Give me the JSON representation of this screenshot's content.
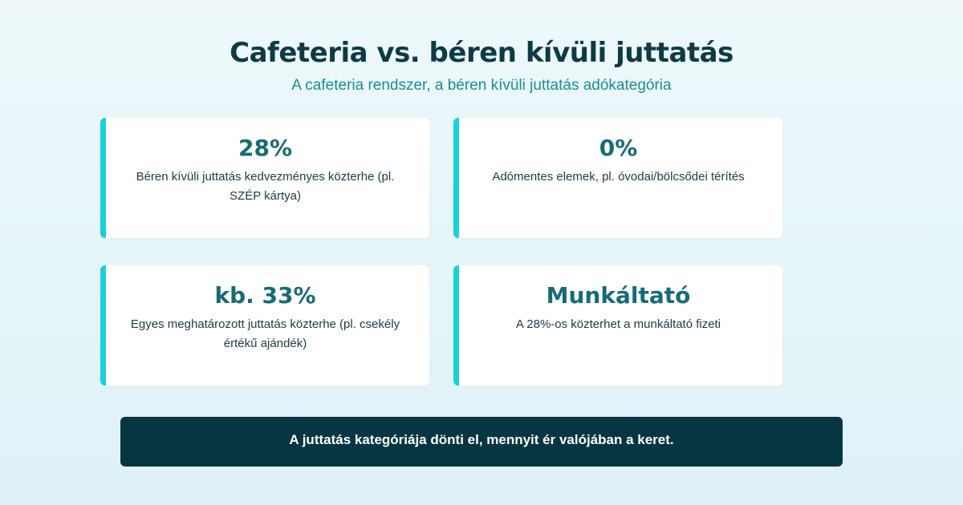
{
  "header": {
    "title": "Cafeteria vs. béren kívüli juttatás",
    "subtitle": "A cafeteria rendszer, a béren kívüli juttatás adókategória"
  },
  "cards": [
    {
      "value": "28%",
      "description": "Béren kívüli juttatás kedvezményes közterhe (pl. SZÉP kártya)"
    },
    {
      "value": "0%",
      "description": "Adómentes elemek, pl. óvodai/bölcsődei térítés"
    },
    {
      "value": "kb. 33%",
      "description": "Egyes meghatározott juttatás közterhe (pl. csekély értékű ajándék)"
    },
    {
      "value": "Munkáltató",
      "description": "A 28%-os közterhet a munkáltató fizeti"
    }
  ],
  "banner": {
    "text": "A juttatás kategóriája dönti el, mennyit ér valójában a keret."
  },
  "colors": {
    "accent": "#18d2d9",
    "value_text": "#166b78",
    "title_text": "#0d3b45",
    "subtitle_text": "#168f99",
    "banner_bg": "#063642"
  }
}
